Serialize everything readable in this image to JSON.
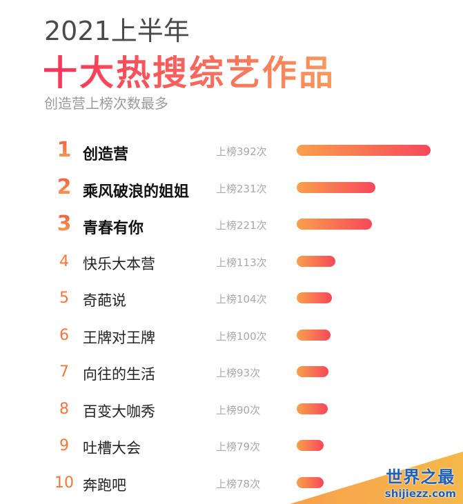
{
  "header": {
    "year_title": "2021上半年",
    "main_title": "十大热搜综艺作品",
    "subtitle": "创造营上榜次数最多"
  },
  "chart_data": {
    "type": "bar",
    "orientation": "horizontal",
    "title": "十大热搜综艺作品",
    "ranks": [
      "1",
      "2",
      "3",
      "4",
      "5",
      "6",
      "7",
      "8",
      "9",
      "10"
    ],
    "categories": [
      "创造营",
      "乘风破浪的姐姐",
      "青春有你",
      "快乐大本营",
      "奇葩说",
      "王牌对王牌",
      "向往的生活",
      "百变大咖秀",
      "吐槽大会",
      "奔跑吧"
    ],
    "values": [
      392,
      231,
      221,
      113,
      104,
      100,
      93,
      90,
      79,
      78
    ],
    "value_labels": [
      "上榜392次",
      "上榜231次",
      "上榜221次",
      "上榜113次",
      "上榜104次",
      "上榜100次",
      "上榜93次",
      "上榜90次",
      "上榜79次",
      "上榜78次"
    ],
    "colors": {
      "bar_start": "#f9a04c",
      "bar_end": "#f7485a",
      "title_start": "#f7315a",
      "title_end": "#f79a5d"
    }
  },
  "watermark": {
    "text": "世界之最",
    "url_text": "shijiezz.com"
  }
}
